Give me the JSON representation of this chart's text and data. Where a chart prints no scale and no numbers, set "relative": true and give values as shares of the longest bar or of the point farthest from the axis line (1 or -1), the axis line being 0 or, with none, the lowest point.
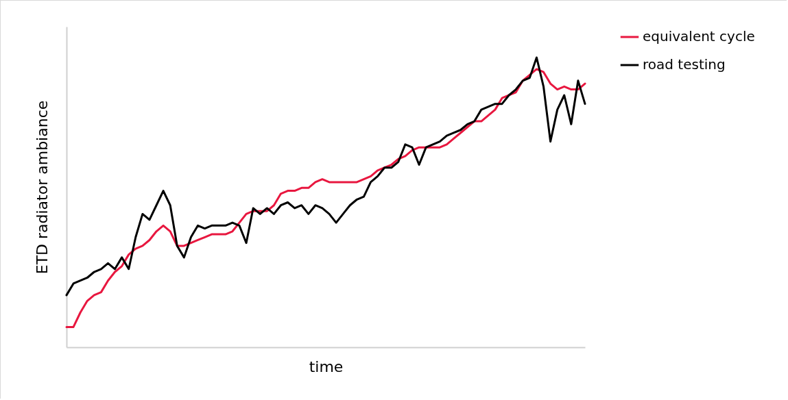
{
  "chart_data": {
    "type": "line",
    "xlabel": "time",
    "ylabel": "ETD radiator ambiance",
    "relative": true,
    "legend": "right",
    "grid": false,
    "marker": "none",
    "line_style": "solid",
    "categories": [
      null,
      null,
      null,
      null,
      null,
      null,
      null,
      null,
      null,
      null,
      null,
      null,
      null,
      null,
      null,
      null,
      null,
      null,
      null,
      null,
      null,
      null,
      null,
      null,
      null,
      null,
      null,
      null,
      null,
      null,
      null,
      null,
      null,
      null,
      null,
      null,
      null,
      null,
      null,
      null,
      null,
      null,
      null,
      null,
      null,
      null,
      null,
      null,
      null,
      null,
      null,
      null,
      null,
      null,
      null,
      null,
      null,
      null,
      null,
      null,
      null,
      null,
      null,
      null,
      null,
      null,
      null,
      null,
      null,
      null,
      null,
      null,
      null,
      null,
      null,
      null
    ],
    "series": [
      {
        "name": "equivalent cycle",
        "color": "#e8173f",
        "values": [
          0.07,
          0.07,
          0.12,
          0.16,
          0.18,
          0.19,
          0.23,
          0.26,
          0.28,
          0.32,
          0.34,
          0.35,
          0.37,
          0.4,
          0.42,
          0.4,
          0.35,
          0.35,
          0.36,
          0.37,
          0.38,
          0.39,
          0.39,
          0.39,
          0.4,
          0.43,
          0.46,
          0.47,
          0.47,
          0.47,
          0.49,
          0.53,
          0.54,
          0.54,
          0.55,
          0.55,
          0.57,
          0.58,
          0.57,
          0.57,
          0.57,
          0.57,
          0.57,
          0.58,
          0.59,
          0.61,
          0.62,
          0.63,
          0.65,
          0.66,
          0.68,
          0.69,
          0.69,
          0.69,
          0.69,
          0.7,
          0.72,
          0.74,
          0.76,
          0.78,
          0.78,
          0.8,
          0.82,
          0.86,
          0.87,
          0.88,
          0.92,
          0.94,
          0.96,
          0.95,
          0.91,
          0.89,
          0.9,
          0.89,
          0.89,
          0.91
        ]
      },
      {
        "name": "road testing",
        "color": "#000000",
        "values": [
          0.18,
          0.22,
          0.23,
          0.24,
          0.26,
          0.27,
          0.29,
          0.27,
          0.31,
          0.27,
          0.38,
          0.46,
          0.44,
          0.49,
          0.54,
          0.49,
          0.35,
          0.31,
          0.38,
          0.42,
          0.41,
          0.42,
          0.42,
          0.42,
          0.43,
          0.42,
          0.36,
          0.48,
          0.46,
          0.48,
          0.46,
          0.49,
          0.5,
          0.48,
          0.49,
          0.46,
          0.49,
          0.48,
          0.46,
          0.43,
          0.46,
          0.49,
          0.51,
          0.52,
          0.57,
          0.59,
          0.62,
          0.62,
          0.64,
          0.7,
          0.69,
          0.63,
          0.69,
          0.7,
          0.71,
          0.73,
          0.74,
          0.75,
          0.77,
          0.78,
          0.82,
          0.83,
          0.84,
          0.84,
          0.87,
          0.89,
          0.92,
          0.93,
          1.0,
          0.9,
          0.71,
          0.82,
          0.87,
          0.77,
          0.92,
          0.84
        ]
      }
    ]
  }
}
